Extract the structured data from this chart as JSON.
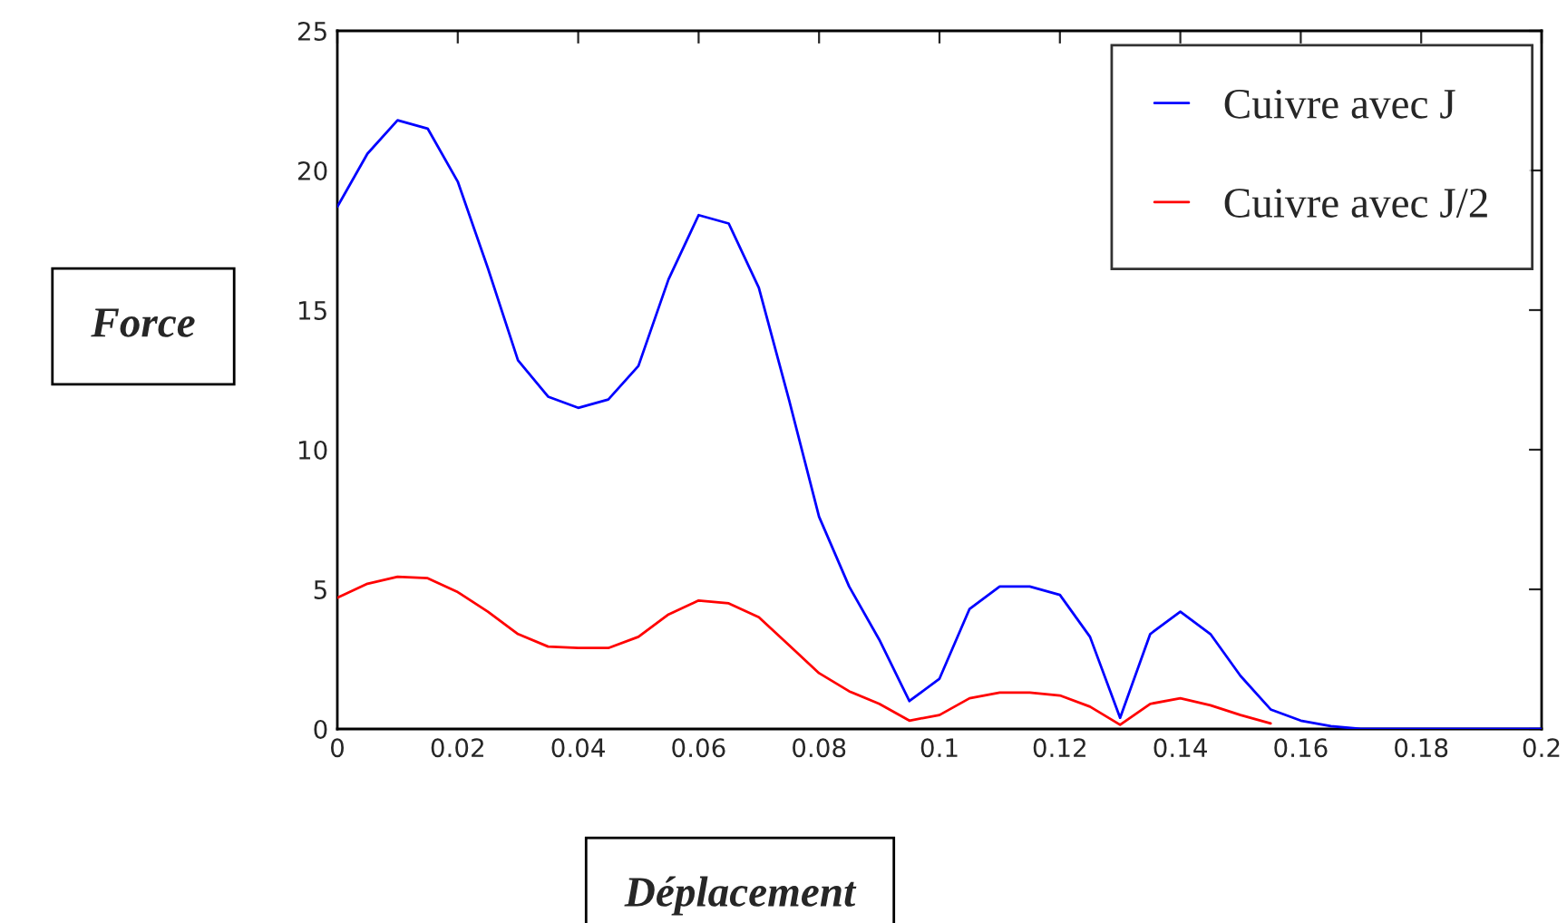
{
  "chart_data": {
    "type": "line",
    "xlabel": "Déplacement",
    "ylabel": "Force",
    "x": [
      0,
      0.005,
      0.01,
      0.015,
      0.02,
      0.025,
      0.03,
      0.035,
      0.04,
      0.045,
      0.05,
      0.055,
      0.06,
      0.065,
      0.07,
      0.075,
      0.08,
      0.085,
      0.09,
      0.095,
      0.1,
      0.105,
      0.11,
      0.115,
      0.12,
      0.125,
      0.13,
      0.135,
      0.14,
      0.145,
      0.15,
      0.155,
      0.16,
      0.165,
      0.17,
      0.175,
      0.18,
      0.185,
      0.19,
      0.195,
      0.2
    ],
    "series": [
      {
        "name": "Cuivre avec J",
        "color": "#0000ff",
        "values": [
          18.7,
          20.6,
          21.8,
          21.5,
          19.6,
          16.5,
          13.2,
          11.9,
          11.5,
          11.8,
          13.0,
          16.1,
          18.4,
          18.1,
          15.8,
          11.8,
          7.6,
          5.1,
          3.2,
          1.0,
          1.8,
          4.3,
          5.1,
          5.1,
          4.8,
          3.3,
          0.4,
          3.4,
          4.2,
          3.4,
          1.9,
          0.7,
          0.3,
          0.1,
          0,
          0,
          0,
          0,
          0,
          0,
          0
        ]
      },
      {
        "name": "Cuivre avec J/2",
        "color": "#ff0000",
        "values": [
          4.7,
          5.2,
          5.45,
          5.4,
          4.9,
          4.2,
          3.4,
          2.95,
          2.9,
          2.9,
          3.3,
          4.1,
          4.6,
          4.5,
          4.0,
          3.0,
          2.0,
          1.35,
          0.9,
          0.3,
          0.5,
          1.1,
          1.3,
          1.3,
          1.2,
          0.8,
          0.15,
          0.9,
          1.1,
          0.85,
          0.5,
          0.2,
          null,
          null,
          null,
          null,
          null,
          null,
          null,
          null,
          null
        ]
      }
    ],
    "xlim": [
      0,
      0.2
    ],
    "xticks": [
      0,
      0.02,
      0.04,
      0.06,
      0.08,
      0.1,
      0.12,
      0.14,
      0.16,
      0.18,
      0.2
    ],
    "ylim": [
      0,
      25
    ],
    "yticks": [
      0,
      5,
      10,
      15,
      20,
      25
    ],
    "grid": false,
    "legend": "top right",
    "line_style": "solid",
    "marker": "none"
  }
}
